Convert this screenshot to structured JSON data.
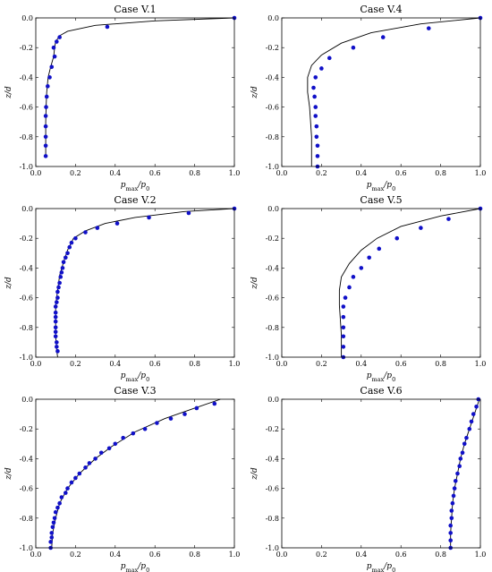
{
  "colors": {
    "model_line": "#000000",
    "data_points": "#1010c8"
  },
  "chart_data": [
    {
      "type": "scatter",
      "title": "Case V.1",
      "xlabel": "p_max/p_0",
      "ylabel": "z/d",
      "xlim": [
        0.0,
        1.0
      ],
      "ylim": [
        -1.0,
        0.0
      ],
      "xticks": [
        "0.0",
        "0.2",
        "0.4",
        "0.6",
        "0.8",
        "1.0"
      ],
      "yticks": [
        "0.0",
        "-0.2",
        "-0.4",
        "-0.6",
        "-0.8",
        "-1.0"
      ],
      "series": [
        {
          "kind": "line",
          "points": [
            [
              1.0,
              0.0
            ],
            [
              0.6,
              -0.02
            ],
            [
              0.3,
              -0.05
            ],
            [
              0.16,
              -0.09
            ],
            [
              0.12,
              -0.12
            ],
            [
              0.1,
              -0.16
            ],
            [
              0.095,
              -0.2
            ],
            [
              0.09,
              -0.26
            ],
            [
              0.075,
              -0.33
            ],
            [
              0.062,
              -0.4
            ],
            [
              0.055,
              -0.5
            ],
            [
              0.052,
              -0.6
            ],
            [
              0.05,
              -0.7
            ],
            [
              0.05,
              -0.8
            ],
            [
              0.05,
              -0.9
            ],
            [
              0.05,
              -0.93
            ]
          ]
        },
        {
          "kind": "scatter",
          "points": [
            [
              1.0,
              0.0
            ],
            [
              0.36,
              -0.06
            ],
            [
              0.12,
              -0.13
            ],
            [
              0.105,
              -0.16
            ],
            [
              0.09,
              -0.2
            ],
            [
              0.095,
              -0.26
            ],
            [
              0.08,
              -0.33
            ],
            [
              0.07,
              -0.4
            ],
            [
              0.06,
              -0.46
            ],
            [
              0.055,
              -0.53
            ],
            [
              0.052,
              -0.6
            ],
            [
              0.05,
              -0.66
            ],
            [
              0.05,
              -0.73
            ],
            [
              0.05,
              -0.8
            ],
            [
              0.05,
              -0.86
            ],
            [
              0.05,
              -0.93
            ]
          ]
        }
      ]
    },
    {
      "type": "scatter",
      "title": "Case V.4",
      "xlabel": "p_max/p_0",
      "ylabel": "z/d",
      "xlim": [
        0.0,
        1.0
      ],
      "ylim": [
        -1.0,
        0.0
      ],
      "xticks": [
        "0.0",
        "0.2",
        "0.4",
        "0.6",
        "0.8",
        "1.0"
      ],
      "yticks": [
        "0.0",
        "-0.2",
        "-0.4",
        "-0.6",
        "-0.8",
        "-1.0"
      ],
      "series": [
        {
          "kind": "line",
          "points": [
            [
              1.0,
              0.0
            ],
            [
              0.7,
              -0.04
            ],
            [
              0.45,
              -0.1
            ],
            [
              0.3,
              -0.17
            ],
            [
              0.2,
              -0.25
            ],
            [
              0.15,
              -0.32
            ],
            [
              0.13,
              -0.4
            ],
            [
              0.13,
              -0.5
            ],
            [
              0.14,
              -0.6
            ],
            [
              0.145,
              -0.7
            ],
            [
              0.15,
              -0.8
            ],
            [
              0.15,
              -0.9
            ],
            [
              0.15,
              -1.0
            ]
          ]
        },
        {
          "kind": "scatter",
          "points": [
            [
              1.0,
              0.0
            ],
            [
              0.74,
              -0.07
            ],
            [
              0.51,
              -0.13
            ],
            [
              0.36,
              -0.2
            ],
            [
              0.24,
              -0.27
            ],
            [
              0.2,
              -0.34
            ],
            [
              0.17,
              -0.4
            ],
            [
              0.16,
              -0.47
            ],
            [
              0.165,
              -0.53
            ],
            [
              0.17,
              -0.6
            ],
            [
              0.17,
              -0.66
            ],
            [
              0.175,
              -0.73
            ],
            [
              0.175,
              -0.8
            ],
            [
              0.18,
              -0.86
            ],
            [
              0.18,
              -0.93
            ],
            [
              0.18,
              -1.0
            ]
          ]
        }
      ]
    },
    {
      "type": "scatter",
      "title": "Case V.2",
      "xlabel": "p_max/p_0",
      "ylabel": "z/d",
      "xlim": [
        0.0,
        1.0
      ],
      "ylim": [
        -1.0,
        0.0
      ],
      "xticks": [
        "0.0",
        "0.2",
        "0.4",
        "0.6",
        "0.8",
        "1.0"
      ],
      "yticks": [
        "0.0",
        "-0.2",
        "-0.4",
        "-0.6",
        "-0.8",
        "-1.0"
      ],
      "series": [
        {
          "kind": "line",
          "points": [
            [
              1.0,
              0.0
            ],
            [
              0.75,
              -0.02
            ],
            [
              0.5,
              -0.06
            ],
            [
              0.35,
              -0.1
            ],
            [
              0.25,
              -0.15
            ],
            [
              0.19,
              -0.2
            ],
            [
              0.16,
              -0.28
            ],
            [
              0.14,
              -0.36
            ],
            [
              0.12,
              -0.45
            ],
            [
              0.11,
              -0.55
            ],
            [
              0.1,
              -0.65
            ],
            [
              0.1,
              -0.75
            ],
            [
              0.1,
              -0.85
            ],
            [
              0.105,
              -0.95
            ],
            [
              0.11,
              -1.0
            ]
          ]
        },
        {
          "kind": "scatter",
          "points": [
            [
              1.0,
              0.0
            ],
            [
              0.77,
              -0.03
            ],
            [
              0.57,
              -0.06
            ],
            [
              0.41,
              -0.1
            ],
            [
              0.31,
              -0.13
            ],
            [
              0.25,
              -0.16
            ],
            [
              0.2,
              -0.2
            ],
            [
              0.18,
              -0.23
            ],
            [
              0.17,
              -0.26
            ],
            [
              0.16,
              -0.3
            ],
            [
              0.15,
              -0.33
            ],
            [
              0.14,
              -0.36
            ],
            [
              0.135,
              -0.4
            ],
            [
              0.13,
              -0.43
            ],
            [
              0.125,
              -0.46
            ],
            [
              0.12,
              -0.5
            ],
            [
              0.115,
              -0.53
            ],
            [
              0.11,
              -0.56
            ],
            [
              0.11,
              -0.6
            ],
            [
              0.105,
              -0.63
            ],
            [
              0.1,
              -0.66
            ],
            [
              0.1,
              -0.7
            ],
            [
              0.1,
              -0.73
            ],
            [
              0.1,
              -0.76
            ],
            [
              0.1,
              -0.8
            ],
            [
              0.1,
              -0.83
            ],
            [
              0.1,
              -0.86
            ],
            [
              0.105,
              -0.9
            ],
            [
              0.105,
              -0.93
            ],
            [
              0.11,
              -0.96
            ]
          ]
        }
      ]
    },
    {
      "type": "scatter",
      "title": "Case V.5",
      "xlabel": "p_max/p_0",
      "ylabel": "z/d",
      "xlim": [
        0.0,
        1.0
      ],
      "ylim": [
        -1.0,
        0.0
      ],
      "xticks": [
        "0.0",
        "0.2",
        "0.4",
        "0.6",
        "0.8",
        "1.0"
      ],
      "yticks": [
        "0.0",
        "-0.2",
        "-0.4",
        "-0.6",
        "-0.8",
        "-1.0"
      ],
      "series": [
        {
          "kind": "line",
          "points": [
            [
              1.0,
              0.0
            ],
            [
              0.8,
              -0.05
            ],
            [
              0.6,
              -0.12
            ],
            [
              0.48,
              -0.2
            ],
            [
              0.4,
              -0.28
            ],
            [
              0.34,
              -0.37
            ],
            [
              0.3,
              -0.46
            ],
            [
              0.29,
              -0.55
            ],
            [
              0.29,
              -0.65
            ],
            [
              0.295,
              -0.75
            ],
            [
              0.3,
              -0.85
            ],
            [
              0.3,
              -0.95
            ],
            [
              0.3,
              -1.0
            ]
          ]
        },
        {
          "kind": "scatter",
          "points": [
            [
              1.0,
              0.0
            ],
            [
              0.84,
              -0.07
            ],
            [
              0.7,
              -0.13
            ],
            [
              0.58,
              -0.2
            ],
            [
              0.49,
              -0.27
            ],
            [
              0.44,
              -0.33
            ],
            [
              0.4,
              -0.4
            ],
            [
              0.36,
              -0.46
            ],
            [
              0.34,
              -0.53
            ],
            [
              0.32,
              -0.6
            ],
            [
              0.31,
              -0.66
            ],
            [
              0.31,
              -0.73
            ],
            [
              0.31,
              -0.8
            ],
            [
              0.31,
              -0.86
            ],
            [
              0.31,
              -0.93
            ],
            [
              0.31,
              -1.0
            ]
          ]
        }
      ]
    },
    {
      "type": "scatter",
      "title": "Case V.3",
      "xlabel": "p_max/p_0",
      "ylabel": "z/d",
      "xlim": [
        0.0,
        1.0
      ],
      "ylim": [
        -1.0,
        0.0
      ],
      "xticks": [
        "0.0",
        "0.2",
        "0.4",
        "0.6",
        "0.8",
        "1.0"
      ],
      "yticks": [
        "0.0",
        "-0.2",
        "-0.4",
        "-0.6",
        "-0.8",
        "-1.0"
      ],
      "series": [
        {
          "kind": "line",
          "points": [
            [
              0.93,
              0.0
            ],
            [
              0.8,
              -0.06
            ],
            [
              0.65,
              -0.13
            ],
            [
              0.5,
              -0.22
            ],
            [
              0.38,
              -0.32
            ],
            [
              0.3,
              -0.4
            ],
            [
              0.22,
              -0.5
            ],
            [
              0.16,
              -0.6
            ],
            [
              0.12,
              -0.7
            ],
            [
              0.1,
              -0.8
            ],
            [
              0.085,
              -0.9
            ],
            [
              0.08,
              -1.0
            ]
          ]
        },
        {
          "kind": "scatter",
          "points": [
            [
              0.9,
              -0.03
            ],
            [
              0.81,
              -0.06
            ],
            [
              0.75,
              -0.1
            ],
            [
              0.68,
              -0.13
            ],
            [
              0.61,
              -0.16
            ],
            [
              0.55,
              -0.2
            ],
            [
              0.49,
              -0.23
            ],
            [
              0.44,
              -0.26
            ],
            [
              0.4,
              -0.3
            ],
            [
              0.37,
              -0.33
            ],
            [
              0.33,
              -0.36
            ],
            [
              0.3,
              -0.4
            ],
            [
              0.27,
              -0.43
            ],
            [
              0.25,
              -0.46
            ],
            [
              0.22,
              -0.5
            ],
            [
              0.2,
              -0.53
            ],
            [
              0.18,
              -0.56
            ],
            [
              0.16,
              -0.6
            ],
            [
              0.15,
              -0.63
            ],
            [
              0.13,
              -0.66
            ],
            [
              0.12,
              -0.7
            ],
            [
              0.11,
              -0.73
            ],
            [
              0.1,
              -0.76
            ],
            [
              0.095,
              -0.8
            ],
            [
              0.09,
              -0.83
            ],
            [
              0.085,
              -0.86
            ],
            [
              0.08,
              -0.9
            ],
            [
              0.08,
              -0.93
            ],
            [
              0.075,
              -0.96
            ],
            [
              0.075,
              -1.0
            ]
          ]
        }
      ]
    },
    {
      "type": "scatter",
      "title": "Case V.6",
      "xlabel": "p_max/p_0",
      "ylabel": "z/d",
      "xlim": [
        0.0,
        1.0
      ],
      "ylim": [
        -1.0,
        0.0
      ],
      "xticks": [
        "0.0",
        "0.2",
        "0.4",
        "0.6",
        "0.8",
        "1.0"
      ],
      "yticks": [
        "0.0",
        "-0.2",
        "-0.4",
        "-0.6",
        "-0.8",
        "-1.0"
      ],
      "series": [
        {
          "kind": "line",
          "points": [
            [
              0.995,
              0.0
            ],
            [
              0.97,
              -0.1
            ],
            [
              0.945,
              -0.2
            ],
            [
              0.92,
              -0.3
            ],
            [
              0.9,
              -0.4
            ],
            [
              0.885,
              -0.5
            ],
            [
              0.87,
              -0.6
            ],
            [
              0.86,
              -0.7
            ],
            [
              0.855,
              -0.8
            ],
            [
              0.85,
              -0.9
            ],
            [
              0.85,
              -1.0
            ]
          ]
        },
        {
          "kind": "scatter",
          "points": [
            [
              0.99,
              0.0
            ],
            [
              0.98,
              -0.05
            ],
            [
              0.965,
              -0.1
            ],
            [
              0.955,
              -0.15
            ],
            [
              0.945,
              -0.2
            ],
            [
              0.93,
              -0.26
            ],
            [
              0.92,
              -0.3
            ],
            [
              0.91,
              -0.36
            ],
            [
              0.9,
              -0.4
            ],
            [
              0.895,
              -0.45
            ],
            [
              0.885,
              -0.5
            ],
            [
              0.875,
              -0.55
            ],
            [
              0.87,
              -0.6
            ],
            [
              0.865,
              -0.65
            ],
            [
              0.86,
              -0.7
            ],
            [
              0.855,
              -0.75
            ],
            [
              0.855,
              -0.8
            ],
            [
              0.85,
              -0.85
            ],
            [
              0.85,
              -0.9
            ],
            [
              0.85,
              -0.95
            ],
            [
              0.85,
              -1.0
            ]
          ]
        }
      ]
    }
  ]
}
